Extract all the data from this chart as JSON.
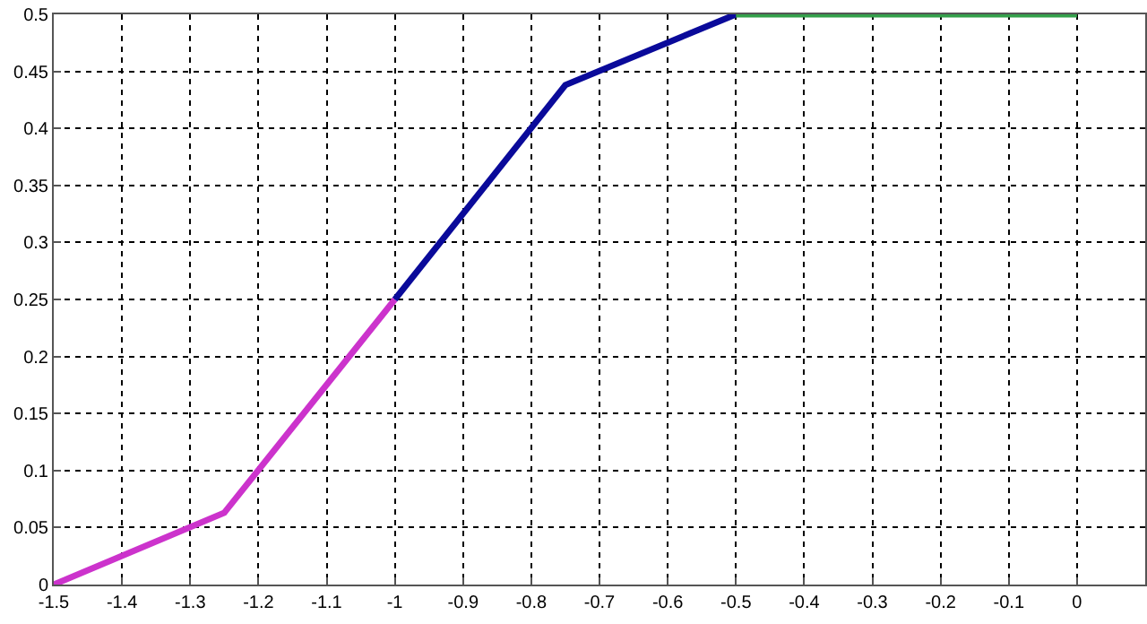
{
  "chart_data": {
    "type": "line",
    "series": [
      {
        "color": "#cc33cc",
        "x": [
          -1.5,
          -1.25,
          -1
        ],
        "values": [
          0,
          0.063,
          0.25
        ]
      },
      {
        "color": "#0a0a9a",
        "x": [
          -1,
          -0.75,
          -0.5
        ],
        "values": [
          0.25,
          0.438,
          0.5
        ]
      },
      {
        "color": "#33a04a",
        "x": [
          -0.5,
          0
        ],
        "values": [
          0.5,
          0.5
        ]
      }
    ],
    "xlim": [
      -1.5,
      0.1
    ],
    "xticks": [
      -1.5,
      -1.4,
      -1.3,
      -1.2,
      -1.1,
      -1,
      -0.9,
      -0.8,
      -0.7,
      -0.6,
      -0.5,
      -0.4,
      -0.3,
      -0.2,
      -0.1,
      0
    ],
    "ylim": [
      0,
      0.5
    ],
    "yticks": [
      0,
      0.05,
      0.1,
      0.15,
      0.2,
      0.25,
      0.3,
      0.35,
      0.4,
      0.45,
      0.5
    ],
    "grid": true,
    "line_style": "solid",
    "marker": "none"
  }
}
